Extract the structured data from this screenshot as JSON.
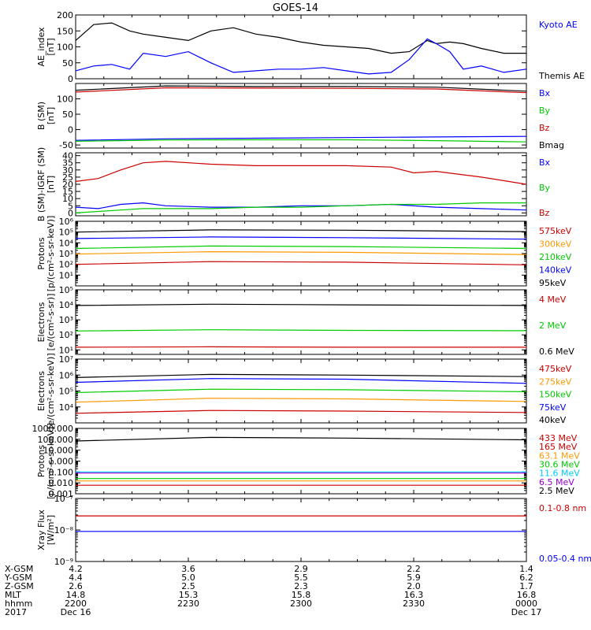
{
  "title": "GOES-14",
  "colors": {
    "black": "#000000",
    "blue": "#0000ff",
    "green": "#00cc00",
    "red": "#cc0000",
    "orange": "#ff9900",
    "cyan": "#00ccff",
    "purple": "#9900cc"
  },
  "chart_data": [
    {
      "type": "line",
      "id": "ae",
      "ylabel": [
        "AE_index",
        "[nT]"
      ],
      "yscale": "linear",
      "ylim": [
        0,
        200
      ],
      "yticks": [
        "0",
        "50",
        "100",
        "150",
        "200"
      ],
      "ytick_values": [
        0,
        50,
        100,
        150,
        200
      ],
      "legend": [
        {
          "label": "Kyoto AE",
          "color": "blue"
        },
        {
          "label": "Themis AE",
          "color": "black"
        }
      ],
      "series": [
        {
          "name": "Themis AE",
          "color": "black",
          "x": [
            0,
            0.04,
            0.08,
            0.12,
            0.15,
            0.2,
            0.25,
            0.3,
            0.35,
            0.4,
            0.45,
            0.5,
            0.55,
            0.6,
            0.65,
            0.7,
            0.74,
            0.78,
            0.8,
            0.83,
            0.86,
            0.9,
            0.95,
            1
          ],
          "y": [
            120,
            170,
            175,
            150,
            140,
            130,
            120,
            150,
            160,
            140,
            130,
            115,
            105,
            100,
            95,
            80,
            85,
            120,
            110,
            115,
            110,
            95,
            80,
            80
          ]
        },
        {
          "name": "Kyoto AE",
          "color": "blue",
          "x": [
            0,
            0.04,
            0.08,
            0.12,
            0.15,
            0.2,
            0.25,
            0.3,
            0.35,
            0.4,
            0.45,
            0.5,
            0.55,
            0.6,
            0.65,
            0.7,
            0.74,
            0.78,
            0.8,
            0.83,
            0.86,
            0.9,
            0.95,
            1
          ],
          "y": [
            25,
            40,
            45,
            30,
            80,
            70,
            85,
            50,
            20,
            25,
            30,
            30,
            35,
            25,
            15,
            20,
            60,
            125,
            110,
            85,
            30,
            40,
            20,
            30
          ]
        }
      ]
    },
    {
      "type": "line",
      "id": "bsm",
      "ylabel": [
        "B (SM)",
        "[nT]"
      ],
      "yscale": "linear",
      "ylim": [
        -60,
        150
      ],
      "yticks": [
        "-50",
        "0",
        "50",
        "100"
      ],
      "ytick_values": [
        -50,
        0,
        50,
        100
      ],
      "legend": [
        {
          "label": "Bx",
          "color": "blue"
        },
        {
          "label": "By",
          "color": "green"
        },
        {
          "label": "Bz",
          "color": "red"
        },
        {
          "label": "Bmag",
          "color": "black"
        }
      ],
      "series": [
        {
          "name": "Bmag",
          "color": "black",
          "x": [
            0,
            0.2,
            0.4,
            0.6,
            0.8,
            1
          ],
          "y": [
            128,
            142,
            140,
            140,
            138,
            125
          ]
        },
        {
          "name": "Bz",
          "color": "red",
          "x": [
            0,
            0.2,
            0.4,
            0.6,
            0.8,
            1
          ],
          "y": [
            122,
            136,
            135,
            134,
            132,
            120
          ]
        },
        {
          "name": "Bx",
          "color": "blue",
          "x": [
            0,
            0.2,
            0.4,
            0.6,
            0.8,
            1
          ],
          "y": [
            -35,
            -30,
            -28,
            -26,
            -24,
            -22
          ]
        },
        {
          "name": "By",
          "color": "green",
          "x": [
            0,
            0.2,
            0.4,
            0.6,
            0.8,
            1
          ],
          "y": [
            -38,
            -34,
            -33,
            -33,
            -36,
            -40
          ]
        }
      ]
    },
    {
      "type": "line",
      "id": "bigrf",
      "ylabel": [
        "B (SM)-IGRF (SM)",
        "[nT]"
      ],
      "yscale": "linear",
      "ylim": [
        -2,
        42
      ],
      "yticks": [
        "0",
        "5",
        "10",
        "15",
        "20",
        "25",
        "30",
        "35",
        "40"
      ],
      "ytick_values": [
        0,
        5,
        10,
        15,
        20,
        25,
        30,
        35,
        40
      ],
      "legend": [
        {
          "label": "Bx",
          "color": "blue"
        },
        {
          "label": "By",
          "color": "green"
        },
        {
          "label": "Bz",
          "color": "red"
        }
      ],
      "series": [
        {
          "name": "Bz",
          "color": "red",
          "x": [
            0,
            0.05,
            0.1,
            0.15,
            0.2,
            0.3,
            0.4,
            0.5,
            0.6,
            0.7,
            0.75,
            0.8,
            0.9,
            1
          ],
          "y": [
            22,
            24,
            30,
            35,
            36,
            34,
            33,
            33,
            33,
            32,
            28,
            29,
            25,
            20
          ]
        },
        {
          "name": "Bx",
          "color": "blue",
          "x": [
            0,
            0.05,
            0.1,
            0.15,
            0.2,
            0.3,
            0.4,
            0.5,
            0.6,
            0.7,
            0.8,
            0.9,
            1
          ],
          "y": [
            4,
            3,
            6,
            7,
            5,
            4,
            4,
            5,
            5,
            6,
            4,
            3,
            2
          ]
        },
        {
          "name": "By",
          "color": "green",
          "x": [
            0,
            0.05,
            0.1,
            0.15,
            0.2,
            0.3,
            0.4,
            0.5,
            0.6,
            0.7,
            0.8,
            0.9,
            1
          ],
          "y": [
            0,
            1,
            2,
            3,
            3,
            3,
            4,
            4,
            5,
            6,
            6,
            7,
            7
          ]
        }
      ]
    },
    {
      "type": "line",
      "id": "protons1",
      "ylabel": [
        "Protons",
        "[p/(cm²-s-sr-keV)]"
      ],
      "yscale": "log",
      "ylim": [
        1,
        1000000
      ],
      "ytick_values": [
        10,
        100,
        1000,
        10000,
        100000,
        1000000
      ],
      "legend": [
        {
          "label": "575keV",
          "color": "red"
        },
        {
          "label": "300keV",
          "color": "orange"
        },
        {
          "label": "210keV",
          "color": "green"
        },
        {
          "label": "140keV",
          "color": "blue"
        },
        {
          "label": "95keV",
          "color": "black"
        }
      ],
      "series": [
        {
          "name": "95keV",
          "color": "black",
          "x": [
            0,
            0.3,
            0.6,
            1
          ],
          "y": [
            100000,
            160000,
            150000,
            110000
          ]
        },
        {
          "name": "140keV",
          "color": "blue",
          "x": [
            0,
            0.3,
            0.6,
            1
          ],
          "y": [
            25000,
            35000,
            30000,
            22000
          ]
        },
        {
          "name": "210keV",
          "color": "green",
          "x": [
            0,
            0.3,
            0.6,
            1
          ],
          "y": [
            3000,
            5000,
            4500,
            3000
          ]
        },
        {
          "name": "300keV",
          "color": "orange",
          "x": [
            0,
            0.3,
            0.6,
            1
          ],
          "y": [
            900,
            1500,
            1300,
            800
          ]
        },
        {
          "name": "575keV",
          "color": "red",
          "x": [
            0,
            0.3,
            0.6,
            1
          ],
          "y": [
            100,
            180,
            160,
            90
          ]
        }
      ]
    },
    {
      "type": "line",
      "id": "electrons1",
      "ylabel": [
        "Electrons",
        "[e/(cm²-s-sr)]"
      ],
      "yscale": "log",
      "ylim": [
        5,
        100000
      ],
      "ytick_values": [
        10,
        100,
        1000,
        10000,
        100000
      ],
      "legend": [
        {
          "label": "4 MeV",
          "color": "red"
        },
        {
          "label": "2 MeV",
          "color": "green"
        },
        {
          "label": "0.6 MeV",
          "color": "black"
        }
      ],
      "series": [
        {
          "name": "0.6 MeV",
          "color": "black",
          "x": [
            0,
            0.3,
            0.6,
            1
          ],
          "y": [
            9000,
            11000,
            10000,
            9000
          ]
        },
        {
          "name": "2 MeV",
          "color": "green",
          "x": [
            0,
            0.3,
            0.6,
            1
          ],
          "y": [
            180,
            220,
            200,
            190
          ]
        },
        {
          "name": "4 MeV",
          "color": "red",
          "x": [
            0,
            0.3,
            0.6,
            1
          ],
          "y": [
            15,
            16,
            15,
            15
          ]
        }
      ]
    },
    {
      "type": "line",
      "id": "electrons2",
      "ylabel": [
        "Electrons",
        "[e/(cm²-s-sr-keV)]"
      ],
      "yscale": "log",
      "ylim": [
        1000,
        10000000
      ],
      "ytick_values": [
        10000,
        100000,
        1000000,
        10000000
      ],
      "legend": [
        {
          "label": "475keV",
          "color": "red"
        },
        {
          "label": "275keV",
          "color": "orange"
        },
        {
          "label": "150keV",
          "color": "green"
        },
        {
          "label": "75keV",
          "color": "blue"
        },
        {
          "label": "40keV",
          "color": "black"
        }
      ],
      "series": [
        {
          "name": "40keV",
          "color": "black",
          "x": [
            0,
            0.3,
            0.6,
            1
          ],
          "y": [
            700000,
            1100000,
            1000000,
            800000
          ]
        },
        {
          "name": "75keV",
          "color": "blue",
          "x": [
            0,
            0.3,
            0.6,
            1
          ],
          "y": [
            350000,
            600000,
            550000,
            300000
          ]
        },
        {
          "name": "150keV",
          "color": "green",
          "x": [
            0,
            0.3,
            0.6,
            1
          ],
          "y": [
            80000,
            130000,
            120000,
            90000
          ]
        },
        {
          "name": "275keV",
          "color": "orange",
          "x": [
            0,
            0.3,
            0.6,
            1
          ],
          "y": [
            20000,
            35000,
            32000,
            22000
          ]
        },
        {
          "name": "475keV",
          "color": "red",
          "x": [
            0,
            0.3,
            0.6,
            1
          ],
          "y": [
            4000,
            6000,
            5500,
            4500
          ]
        }
      ]
    },
    {
      "type": "line",
      "id": "protons2",
      "ylabel": [
        "Protons",
        "[p/(cm²-s-sr-keV)]"
      ],
      "yscale": "log",
      "ylim": [
        0.001,
        1000
      ],
      "yticks": [
        "0.001",
        "0.010",
        "0.100",
        "1.000",
        "10.000",
        "100.000",
        "1000.000"
      ],
      "ytick_values": [
        0.001,
        0.01,
        0.1,
        1,
        10,
        100,
        1000
      ],
      "legend": [
        {
          "label": "433 MeV",
          "color": "red"
        },
        {
          "label": "165 MeV",
          "color": "red"
        },
        {
          "label": "63.1 MeV",
          "color": "orange"
        },
        {
          "label": "30.6 MeV",
          "color": "green"
        },
        {
          "label": "11.6 MeV",
          "color": "cyan"
        },
        {
          "label": "6.5 MeV",
          "color": "purple"
        },
        {
          "label": "2.5 MeV",
          "color": "black"
        }
      ],
      "series": [
        {
          "name": "2.5 MeV",
          "color": "black",
          "x": [
            0,
            0.3,
            0.6,
            1
          ],
          "y": [
            70,
            150,
            130,
            90
          ]
        },
        {
          "name": "6.5 MeV",
          "color": "purple",
          "x": [
            0,
            1
          ],
          "y": [
            0.08,
            0.08
          ]
        },
        {
          "name": "11.6 MeV",
          "color": "cyan",
          "x": [
            0,
            1
          ],
          "y": [
            0.1,
            0.1
          ]
        },
        {
          "name": "30.6 MeV",
          "color": "green",
          "x": [
            0,
            1
          ],
          "y": [
            0.025,
            0.025
          ]
        },
        {
          "name": "63.1 MeV",
          "color": "orange",
          "x": [
            0,
            1
          ],
          "y": [
            0.015,
            0.015
          ]
        },
        {
          "name": "165 MeV",
          "color": "red",
          "x": [
            0,
            1
          ],
          "y": [
            0.006,
            0.006
          ]
        }
      ]
    },
    {
      "type": "line",
      "id": "xray",
      "ylabel": [
        "Xray Flux",
        "[W/m²]"
      ],
      "yscale": "log",
      "ylim": [
        1e-09,
        1e-07
      ],
      "yticks": [
        "10⁻⁹",
        "10⁻⁸",
        "10⁻⁷"
      ],
      "ytick_values": [
        1e-09,
        1e-08,
        1e-07
      ],
      "legend": [
        {
          "label": "0.1-0.8 nm",
          "color": "red"
        },
        {
          "label": "0.05-0.4 nm",
          "color": "blue"
        }
      ],
      "series": [
        {
          "name": "0.1-0.8 nm",
          "color": "red",
          "x": [
            0,
            1
          ],
          "y": [
            2.8e-08,
            2.8e-08
          ]
        },
        {
          "name": "0.05-0.4 nm",
          "color": "blue",
          "x": [
            0,
            1
          ],
          "y": [
            9e-09,
            9e-09
          ]
        }
      ]
    }
  ],
  "footer": {
    "labels": [
      "X-GSM",
      "Y-GSM",
      "Z-GSM",
      "MLT",
      "hhmm",
      "2017"
    ],
    "columns": [
      {
        "vals": [
          "4.2",
          "4.4",
          "2.6",
          "14.8",
          "2200",
          "Dec 16"
        ]
      },
      {
        "vals": [
          "3.6",
          "5.0",
          "2.5",
          "15.3",
          "2230",
          ""
        ]
      },
      {
        "vals": [
          "2.9",
          "5.5",
          "2.3",
          "15.8",
          "2300",
          ""
        ]
      },
      {
        "vals": [
          "2.2",
          "5.9",
          "2.0",
          "16.3",
          "2330",
          ""
        ]
      },
      {
        "vals": [
          "1.4",
          "6.2",
          "1.7",
          "16.8",
          "0000",
          "Dec 17"
        ]
      }
    ]
  }
}
